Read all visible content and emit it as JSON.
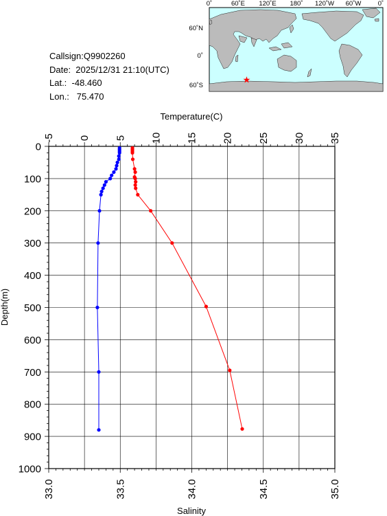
{
  "info": {
    "callsign": "Callsign:Q9902260",
    "date": "Date:  2025/12/31 21:10(UTC)",
    "lat": "Lat.:  -48.460",
    "lon": "Lon.:   75.470"
  },
  "map": {
    "lon_labels": [
      "0˚",
      "60˚E",
      "120˚E",
      "180˚",
      "120˚W",
      "60˚W",
      "0˚"
    ],
    "lat_labels": [
      "60˚N",
      "0˚",
      "60˚S"
    ],
    "station": {
      "lon": 75.47,
      "lat": -48.46
    },
    "colors": {
      "ocean": "#ccffff",
      "land": "#bbbbbb",
      "marker": "#ff0000"
    }
  },
  "chart_data": {
    "type": "line",
    "ylabel": "Depth(m)",
    "ylim": [
      1000,
      0
    ],
    "yticks": [
      0,
      100,
      200,
      300,
      400,
      500,
      600,
      700,
      800,
      900,
      1000
    ],
    "temperature_axis": {
      "label": "Temperature(C)",
      "range": [
        -5,
        35
      ],
      "ticks": [
        -5,
        0,
        5,
        10,
        15,
        20,
        25,
        30,
        35
      ]
    },
    "salinity_axis": {
      "label": "Salinity",
      "range": [
        33.0,
        35.0
      ],
      "ticks": [
        "33.0",
        "33.5",
        "34.0",
        "34.5",
        "35.0"
      ]
    },
    "grid": true,
    "series": [
      {
        "color": "#0000ff",
        "axis": "salinity",
        "points": [
          [
            33.495,
            5
          ],
          [
            33.495,
            10
          ],
          [
            33.495,
            15
          ],
          [
            33.495,
            20
          ],
          [
            33.49,
            30
          ],
          [
            33.49,
            40
          ],
          [
            33.48,
            50
          ],
          [
            33.475,
            60
          ],
          [
            33.47,
            70
          ],
          [
            33.455,
            80
          ],
          [
            33.44,
            90
          ],
          [
            33.43,
            100
          ],
          [
            33.4,
            110
          ],
          [
            33.39,
            120
          ],
          [
            33.38,
            130
          ],
          [
            33.37,
            140
          ],
          [
            33.365,
            150
          ],
          [
            33.355,
            200
          ],
          [
            33.345,
            300
          ],
          [
            33.34,
            500
          ],
          [
            33.35,
            700
          ],
          [
            33.35,
            880
          ]
        ]
      },
      {
        "color": "#ff0000",
        "axis": "temperature",
        "points": [
          [
            6.7,
            5
          ],
          [
            6.7,
            10
          ],
          [
            6.7,
            15
          ],
          [
            6.7,
            20
          ],
          [
            6.75,
            40
          ],
          [
            7.0,
            70
          ],
          [
            7.1,
            80
          ],
          [
            7.0,
            95
          ],
          [
            7.1,
            100
          ],
          [
            7.15,
            110
          ],
          [
            7.1,
            120
          ],
          [
            7.15,
            130
          ],
          [
            7.45,
            150
          ],
          [
            9.25,
            200
          ],
          [
            12.25,
            300
          ],
          [
            17.0,
            497
          ],
          [
            20.3,
            695
          ],
          [
            22.05,
            877
          ]
        ]
      }
    ]
  }
}
